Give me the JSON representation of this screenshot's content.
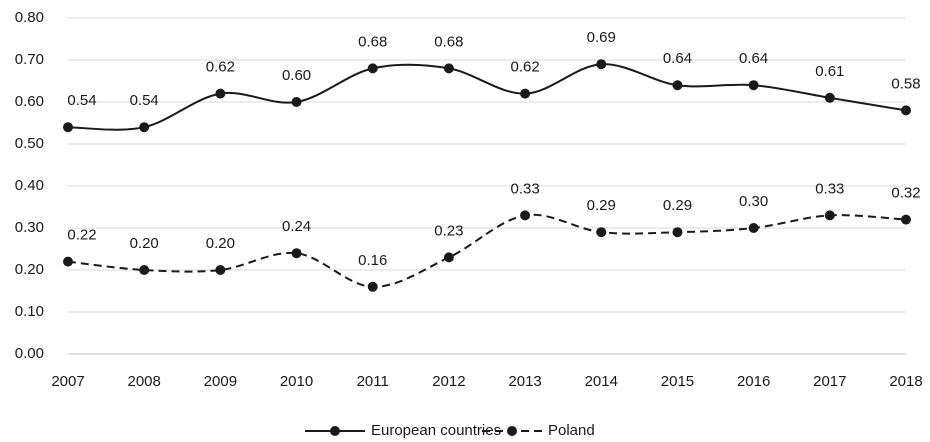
{
  "chart_data": {
    "type": "line",
    "categories": [
      "2007",
      "2008",
      "2009",
      "2010",
      "2011",
      "2012",
      "2013",
      "2014",
      "2015",
      "2016",
      "2017",
      "2018"
    ],
    "series": [
      {
        "name": "European countries",
        "color": "#1a1a1a",
        "line_style": "solid",
        "values": [
          0.54,
          0.54,
          0.62,
          0.6,
          0.68,
          0.68,
          0.62,
          0.69,
          0.64,
          0.64,
          0.61,
          0.58
        ],
        "value_labels": [
          "0.54",
          "0.54",
          "0.62",
          "0.60",
          "0.68",
          "0.68",
          "0.62",
          "0.69",
          "0.64",
          "0.64",
          "0.61",
          "0.58"
        ]
      },
      {
        "name": "Poland",
        "color": "#1a1a1a",
        "line_style": "dashed",
        "values": [
          0.22,
          0.2,
          0.2,
          0.24,
          0.16,
          0.23,
          0.33,
          0.29,
          0.29,
          0.3,
          0.33,
          0.32
        ],
        "value_labels": [
          "0.22",
          "0.20",
          "0.20",
          "0.24",
          "0.16",
          "0.23",
          "0.33",
          "0.29",
          "0.29",
          "0.30",
          "0.33",
          "0.32"
        ]
      }
    ],
    "ylim": [
      0,
      0.8
    ],
    "yticks": [
      {
        "value": 0,
        "label": "0.00"
      },
      {
        "value": 0.1,
        "label": "0.10"
      },
      {
        "value": 0.2,
        "label": "0.20"
      },
      {
        "value": 0.3,
        "label": "0.30"
      },
      {
        "value": 0.4,
        "label": "0.40"
      },
      {
        "value": 0.5,
        "label": "0.50"
      },
      {
        "value": 0.6,
        "label": "0.60"
      },
      {
        "value": 0.7,
        "label": "0.70"
      },
      {
        "value": 0.8,
        "label": "0.80"
      }
    ],
    "grid": true,
    "smooth": true,
    "legend": "bottom"
  }
}
